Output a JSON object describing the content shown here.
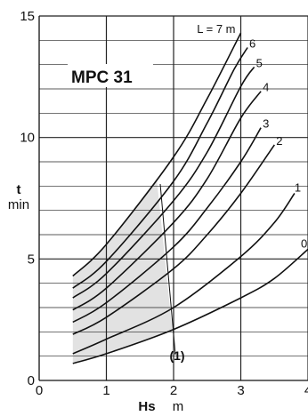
{
  "chart_data": {
    "type": "line",
    "title": "MPC 31",
    "xlabel": "Hs",
    "xunit": "m",
    "ylabel": "t",
    "yunit": "min",
    "xlim": [
      0,
      4
    ],
    "ylim": [
      0,
      15
    ],
    "x_ticks": [
      "0",
      "1",
      "2",
      "3",
      "4"
    ],
    "y_ticks": [
      "0",
      "5",
      "10",
      "15"
    ],
    "grid": true,
    "annotation": "(1)",
    "series": [
      {
        "name": "0",
        "points": [
          [
            0.5,
            0.7
          ],
          [
            1.0,
            1.1
          ],
          [
            2.0,
            2.1
          ],
          [
            3.0,
            3.4
          ],
          [
            3.5,
            4.2
          ],
          [
            4.0,
            5.4
          ]
        ]
      },
      {
        "name": "1",
        "points": [
          [
            0.5,
            1.1
          ],
          [
            1.0,
            1.7
          ],
          [
            2.0,
            3.0
          ],
          [
            3.0,
            5.1
          ],
          [
            3.5,
            6.5
          ],
          [
            3.8,
            7.7
          ]
        ]
      },
      {
        "name": "2",
        "points": [
          [
            0.5,
            1.9
          ],
          [
            1.0,
            2.6
          ],
          [
            2.0,
            4.6
          ],
          [
            2.5,
            6.0
          ],
          [
            3.0,
            7.7
          ],
          [
            3.5,
            9.7
          ]
        ]
      },
      {
        "name": "3",
        "points": [
          [
            0.5,
            2.4
          ],
          [
            1.0,
            3.2
          ],
          [
            2.0,
            5.5
          ],
          [
            2.5,
            7.1
          ],
          [
            3.0,
            9.0
          ],
          [
            3.3,
            10.4
          ]
        ]
      },
      {
        "name": "4",
        "points": [
          [
            0.5,
            2.9
          ],
          [
            1.0,
            3.8
          ],
          [
            2.0,
            6.5
          ],
          [
            2.5,
            8.3
          ],
          [
            3.0,
            10.8
          ],
          [
            3.3,
            11.9
          ]
        ]
      },
      {
        "name": "5",
        "points": [
          [
            0.5,
            3.4
          ],
          [
            1.0,
            4.4
          ],
          [
            2.0,
            7.4
          ],
          [
            2.5,
            9.4
          ],
          [
            3.0,
            12.1
          ],
          [
            3.2,
            12.9
          ]
        ]
      },
      {
        "name": "6",
        "points": [
          [
            0.5,
            3.8
          ],
          [
            1.0,
            4.9
          ],
          [
            2.0,
            8.2
          ],
          [
            2.5,
            10.6
          ],
          [
            2.9,
            12.8
          ],
          [
            3.1,
            13.7
          ]
        ]
      },
      {
        "name": "L = 7 m",
        "points": [
          [
            0.5,
            4.3
          ],
          [
            1.0,
            5.6
          ],
          [
            2.0,
            9.2
          ],
          [
            2.5,
            11.6
          ],
          [
            3.0,
            14.3
          ]
        ]
      }
    ]
  }
}
